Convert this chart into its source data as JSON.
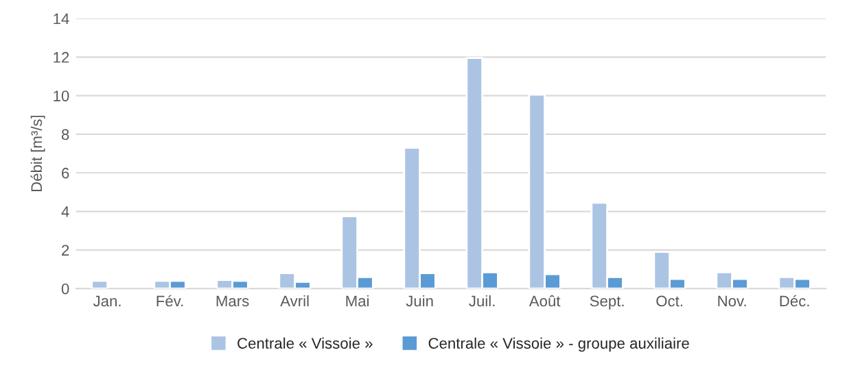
{
  "chart_data": {
    "type": "bar",
    "ylabel": "Débit [m³/s]",
    "categories": [
      "Jan.",
      "Fév.",
      "Mars",
      "Avril",
      "Mai",
      "Juin",
      "Juil.",
      "Août",
      "Sept.",
      "Oct.",
      "Nov.",
      "Déc."
    ],
    "series": [
      {
        "name": "Centrale « Vissoie »",
        "color": "#abc4e4",
        "values": [
          0.4,
          0.4,
          0.45,
          0.8,
          3.75,
          7.3,
          11.95,
          10.05,
          4.45,
          1.9,
          0.85,
          0.6
        ]
      },
      {
        "name": "Centrale « Vissoie » - groupe auxiliaire",
        "color": "#5b9bd5",
        "values": [
          null,
          0.4,
          0.4,
          0.35,
          0.6,
          0.8,
          0.85,
          0.75,
          0.6,
          0.5,
          0.5,
          0.5
        ]
      }
    ],
    "ylim": [
      0,
      14
    ],
    "yticks": [
      0,
      2,
      4,
      6,
      8,
      10,
      12,
      14
    ],
    "grid": "y",
    "legend": "bottom"
  }
}
